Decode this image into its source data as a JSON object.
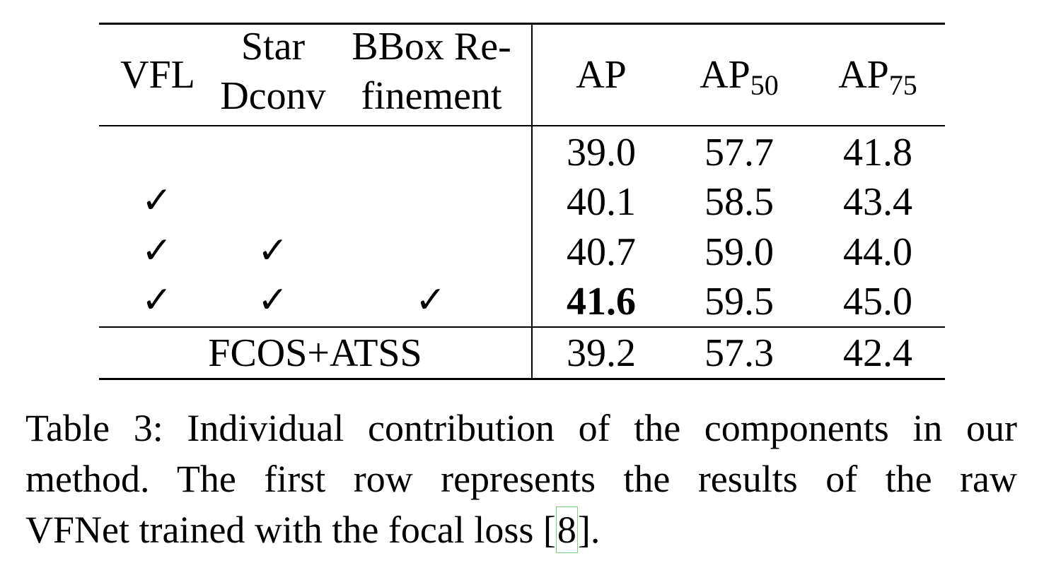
{
  "table": {
    "headers": {
      "vfl": "VFL",
      "star_line1": "Star",
      "star_line2": "Dconv",
      "bbox_line1": "BBox Re-",
      "bbox_line2": "finement",
      "ap": "AP",
      "ap50_base": "AP",
      "ap50_sub": "50",
      "ap75_base": "AP",
      "ap75_sub": "75"
    },
    "check_symbol": "✓",
    "rows": [
      {
        "vfl": false,
        "star": false,
        "bbox": false,
        "ap": "39.0",
        "ap50": "57.7",
        "ap75": "41.8"
      },
      {
        "vfl": true,
        "star": false,
        "bbox": false,
        "ap": "40.1",
        "ap50": "58.5",
        "ap75": "43.4"
      },
      {
        "vfl": true,
        "star": true,
        "bbox": false,
        "ap": "40.7",
        "ap50": "59.0",
        "ap75": "44.0"
      },
      {
        "vfl": true,
        "star": true,
        "bbox": true,
        "ap": "41.6",
        "ap50": "59.5",
        "ap75": "45.0",
        "ap_bold": true
      }
    ],
    "baseline": {
      "label": "FCOS+ATSS",
      "ap": "39.2",
      "ap50": "57.3",
      "ap75": "42.4"
    }
  },
  "caption": {
    "line1": "Table 3: Individual contribution of the components in our",
    "line2": "method.  The first row represents the results of the raw",
    "line3_pre": "VFNet trained with the focal loss [",
    "cite": "8",
    "line3_post": "]."
  }
}
